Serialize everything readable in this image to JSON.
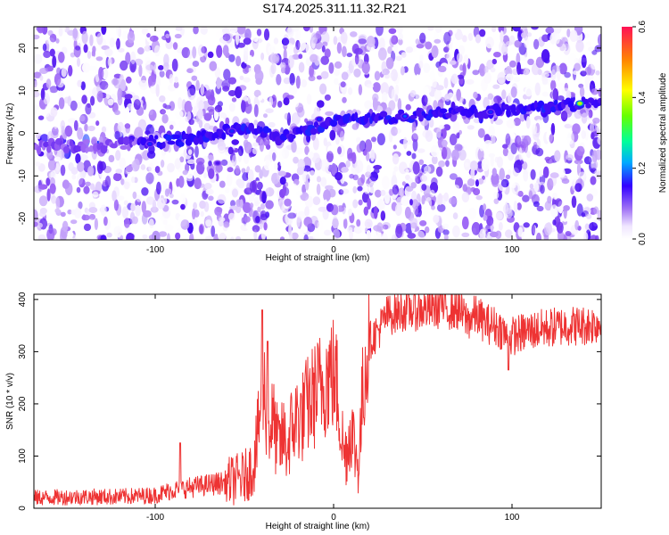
{
  "title": "S174.2025.311.11.32.R21",
  "chart_data": [
    {
      "type": "heatmap",
      "title": "S174.2025.311.11.32.R21",
      "xlabel": "Height of straight line (km)",
      "ylabel": "Frequency (Hz)",
      "xlim": [
        -168,
        150
      ],
      "ylim": [
        -25,
        25
      ],
      "xticks": [
        -100,
        0,
        100
      ],
      "yticks": [
        -20,
        -10,
        0,
        10,
        20
      ],
      "colorbar": {
        "label": "Normalized spectral amplitude",
        "range": [
          0.0,
          0.6
        ],
        "ticks": [
          "0.0",
          "0.2",
          "0.4",
          "0.6"
        ]
      },
      "signal_track": {
        "x": [
          -168,
          -140,
          -120,
          -100,
          -85,
          -70,
          -58,
          -45,
          -30,
          -15,
          0,
          20,
          40,
          60,
          80,
          100,
          120,
          140,
          150
        ],
        "y": [
          -3,
          -3,
          -2.5,
          -2,
          -1.5,
          -0.5,
          0.5,
          1,
          -1,
          1,
          3,
          3.5,
          4,
          4.5,
          5,
          5.5,
          6,
          7,
          7.5
        ]
      },
      "peaks": [
        {
          "x": -103,
          "y": -2.5,
          "value": 0.3
        },
        {
          "x": -57,
          "y": 0.5,
          "value": 0.3
        },
        {
          "x": -65,
          "y": -7,
          "value": 0.22
        },
        {
          "x": -8,
          "y": 3.3,
          "value": 0.3
        },
        {
          "x": 40,
          "y": 4,
          "value": 0.32
        },
        {
          "x": 88,
          "y": 5,
          "value": 0.3
        },
        {
          "x": 138,
          "y": 7,
          "value": 0.52
        }
      ]
    },
    {
      "type": "line",
      "xlabel": "Height of straight line (km)",
      "ylabel": "SNR (10 * v/v)",
      "xlim": [
        -168,
        150
      ],
      "ylim": [
        0,
        410
      ],
      "xticks": [
        -100,
        0,
        100
      ],
      "yticks": [
        0,
        100,
        200,
        300,
        400
      ],
      "color": "#ee3333",
      "series": [
        {
          "x": [
            -168,
            -140,
            -120,
            -100,
            -90,
            -80,
            -70,
            -60,
            -50,
            -45,
            -42,
            -40,
            -38,
            -36,
            -34,
            -32,
            -30,
            -28,
            -26,
            -24,
            -22,
            -20,
            -18,
            -16,
            -14,
            -12,
            -10,
            -8,
            -6,
            -4,
            -2,
            0,
            2,
            4,
            6,
            8,
            10,
            12,
            14,
            16,
            18,
            20,
            25,
            30,
            40,
            50,
            60,
            70,
            75,
            80,
            85,
            90,
            95,
            98,
            100,
            105,
            110,
            120,
            130,
            140,
            150
          ],
          "y": [
            20,
            22,
            22,
            25,
            35,
            40,
            45,
            50,
            60,
            80,
            150,
            250,
            200,
            150,
            170,
            130,
            120,
            140,
            110,
            150,
            160,
            180,
            170,
            190,
            200,
            210,
            220,
            230,
            240,
            250,
            260,
            255,
            230,
            160,
            100,
            120,
            160,
            110,
            80,
            200,
            290,
            320,
            340,
            370,
            380,
            380,
            385,
            380,
            360,
            370,
            355,
            350,
            340,
            320,
            330,
            335,
            340,
            345,
            350,
            350,
            355
          ],
          "peaks": [
            {
              "x": -40,
              "y": 380
            },
            {
              "x": -86,
              "y": 125
            },
            {
              "x": -37,
              "y": 320
            },
            {
              "x": 60,
              "y": 410
            },
            {
              "x": 98,
              "y": 265
            }
          ]
        }
      ]
    }
  ]
}
